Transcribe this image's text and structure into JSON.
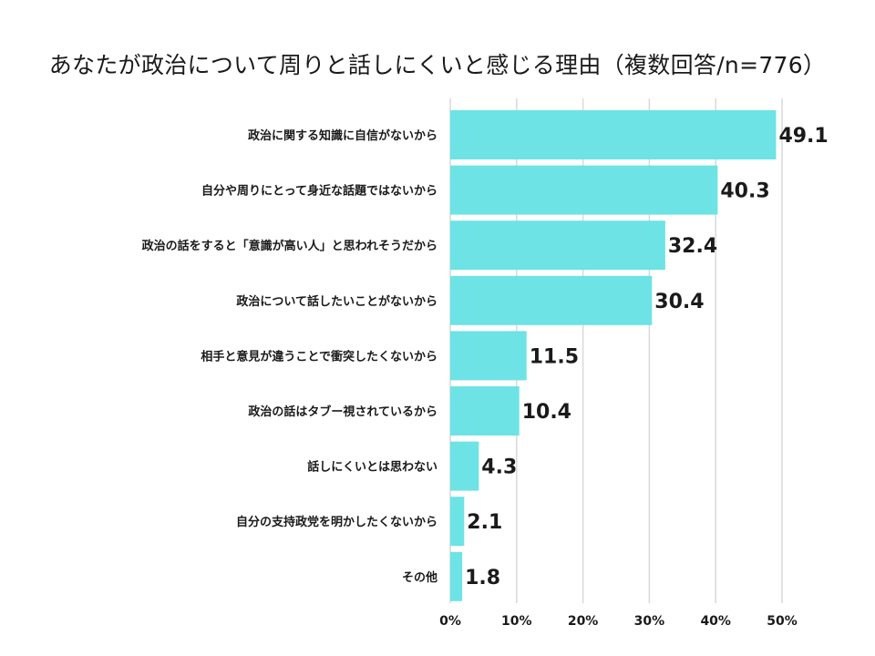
{
  "chart_data": {
    "type": "bar",
    "orientation": "horizontal",
    "title": "あなたが政治について周りと話しにくいと感じる理由（複数回答/n=776）",
    "categories": [
      "政治に関する知識に自信がないから",
      "自分や周りにとって身近な話題ではないから",
      "政治の話をすると「意識が高い人」と思われそうだから",
      "政治について話したいことがないから",
      "相手と意見が違うことで衝突したくないから",
      "政治の話はタブー視されているから",
      "話しにくいとは思わない",
      "自分の支持政党を明かしたくないから",
      "その他"
    ],
    "values": [
      49.1,
      40.3,
      32.4,
      30.4,
      11.5,
      10.4,
      4.3,
      2.1,
      1.8
    ],
    "value_labels": [
      "49.1",
      "40.3",
      "32.4",
      "30.4",
      "11.5",
      "10.4",
      "4.3",
      "2.1",
      "1.8"
    ],
    "xlim": [
      0,
      50
    ],
    "x_ticks": [
      0,
      10,
      20,
      30,
      40,
      50
    ],
    "x_tick_labels": [
      "0%",
      "10%",
      "20%",
      "30%",
      "40%",
      "50%"
    ],
    "xlabel": "",
    "ylabel": "",
    "grid": true,
    "bar_color": "#6de3e6"
  }
}
